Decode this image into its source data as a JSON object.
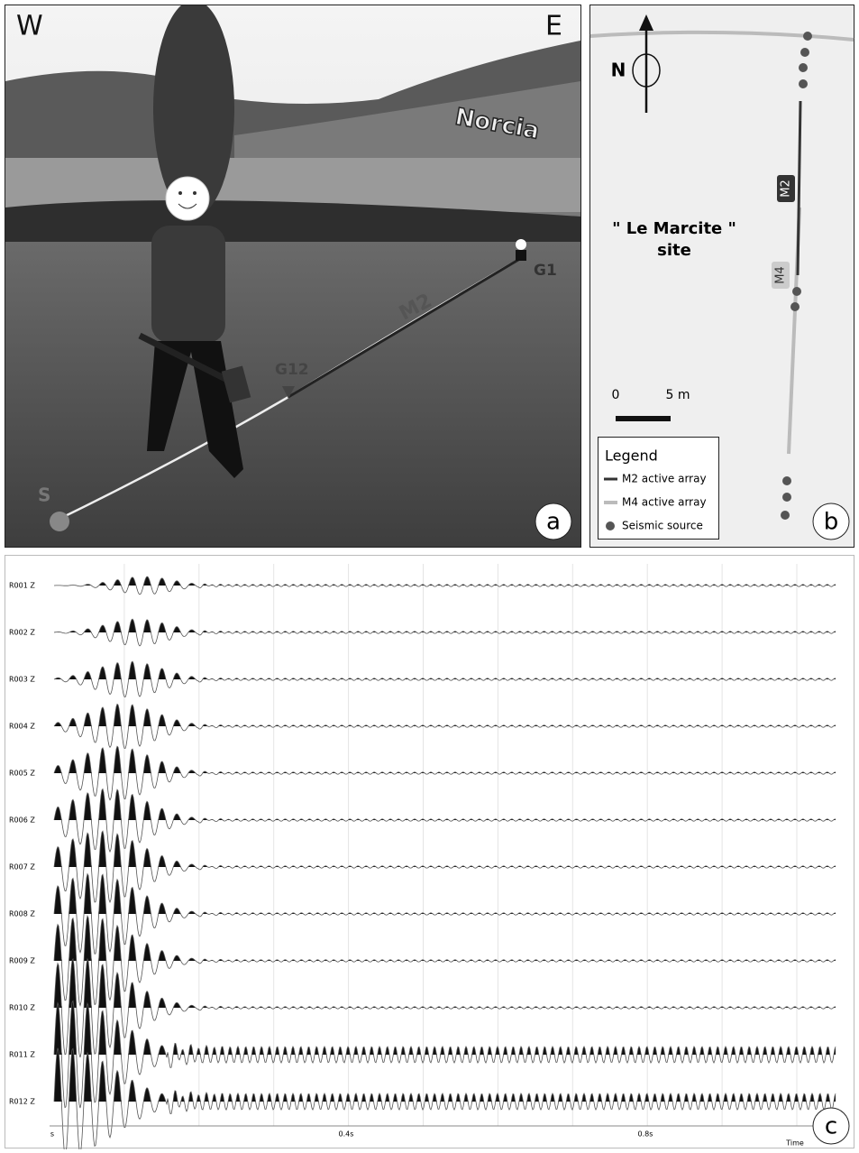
{
  "photo": {
    "west": "W",
    "east": "E",
    "town": "Norcia",
    "array": "M2",
    "geophone_near": "G12",
    "geophone_far": "G1",
    "source": "S",
    "panel": "a"
  },
  "map": {
    "north": "N",
    "site": "\" Le Marcite \"\nsite",
    "array_m2": "M2",
    "array_m4": "M4",
    "scale_start": "0",
    "scale_end": "5 m",
    "legend": {
      "title": "Legend",
      "items": [
        "M2 active array",
        "M4 active array",
        "Seismic source"
      ]
    },
    "panel": "b"
  },
  "seismogram": {
    "traces": [
      "R001 Z",
      "R002 Z",
      "R003 Z",
      "R004 Z",
      "R005 Z",
      "R006 Z",
      "R007 Z",
      "R008 Z",
      "R009 Z",
      "R010 Z",
      "R011 Z",
      "R012 Z"
    ],
    "axis_labels": [
      "s",
      "0.4s",
      "0.8s"
    ],
    "axis_title": "Time",
    "panel": "c"
  }
}
